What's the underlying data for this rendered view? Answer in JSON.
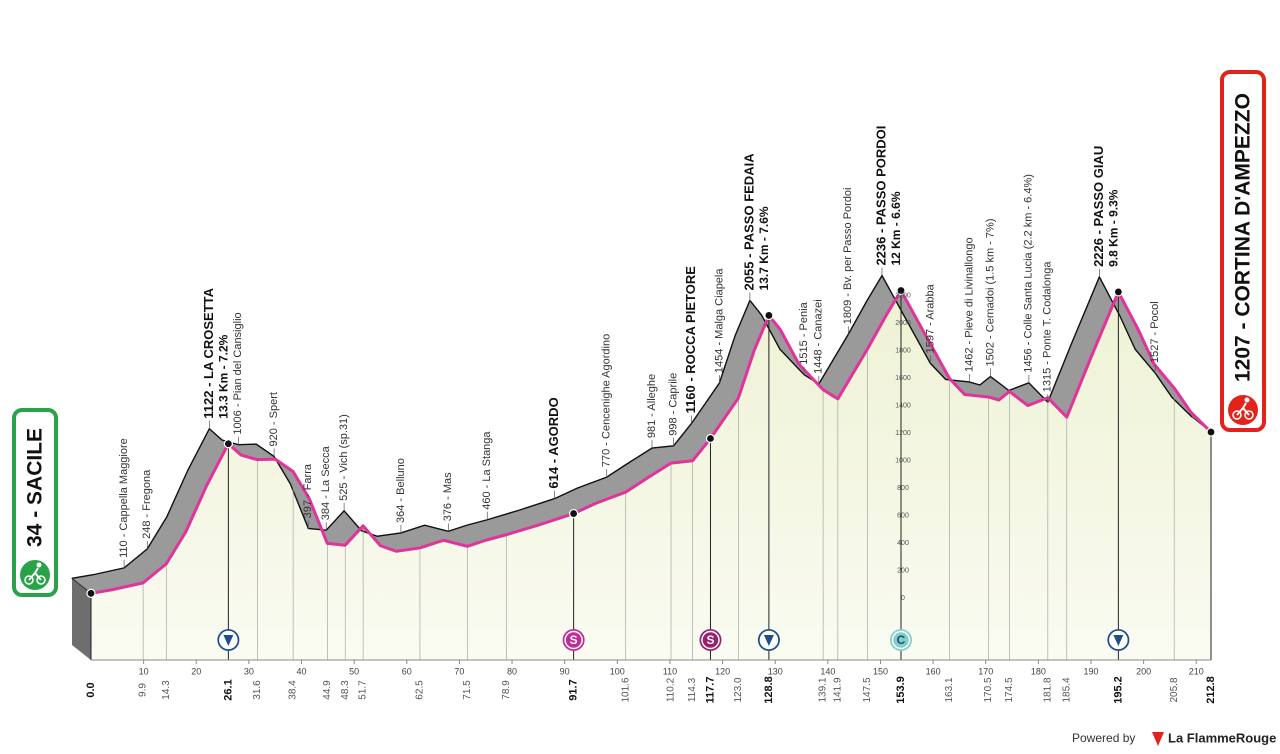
{
  "chart_data": {
    "type": "profile",
    "line_color": "#e0339c",
    "side_color": "#9a9a9a",
    "fill_color": "#eef2d3",
    "x": [
      0,
      4,
      9.9,
      14.3,
      18,
      22,
      26.1,
      28.5,
      31.6,
      35,
      38.4,
      41.5,
      44.9,
      48.3,
      51.7,
      55,
      58,
      62.5,
      67,
      71.5,
      75,
      78.9,
      85,
      91.7,
      96,
      101.6,
      106,
      110.2,
      114.3,
      117.7,
      123.0,
      126,
      128.8,
      131,
      134.5,
      139.1,
      141.9,
      147.5,
      151,
      153.9,
      158,
      163.1,
      166,
      170.5,
      172.5,
      174.5,
      178,
      181.8,
      185.4,
      190,
      195.2,
      199,
      202,
      205.8,
      209,
      212.8
    ],
    "values": [
      34,
      60,
      110,
      248,
      480,
      820,
      1122,
      1040,
      1006,
      1010,
      920,
      720,
      397,
      384,
      525,
      380,
      340,
      364,
      420,
      376,
      420,
      460,
      530,
      614,
      690,
      770,
      880,
      981,
      998,
      1160,
      1454,
      1800,
      2055,
      1950,
      1700,
      1515,
      1448,
      1809,
      2050,
      2236,
      1950,
      1597,
      1480,
      1462,
      1440,
      1502,
      1400,
      1456,
      1315,
      1750,
      2226,
      1950,
      1700,
      1527,
      1350,
      1207
    ],
    "xlim": [
      0,
      212.8
    ],
    "ylim": [
      0,
      2200
    ],
    "xticks": [
      10,
      20,
      30,
      40,
      50,
      60,
      70,
      80,
      90,
      100,
      110,
      120,
      130,
      140,
      150,
      160,
      170,
      180,
      190,
      200,
      210
    ],
    "yticks": [
      0,
      200,
      400,
      600,
      800,
      1000,
      1200,
      1400,
      1600,
      1800,
      2000,
      2200
    ],
    "km_points": [
      {
        "value": 0,
        "label": "0.0",
        "bold": true
      },
      9.9,
      14.3,
      {
        "value": 26.1,
        "bold": true
      },
      31.6,
      38.4,
      44.9,
      48.3,
      51.7,
      62.5,
      71.5,
      78.9,
      {
        "value": 91.7,
        "bold": true
      },
      101.6,
      110.2,
      114.3,
      {
        "value": 117.7,
        "bold": true
      },
      {
        "value": 123,
        "label": "123.0"
      },
      {
        "value": 128.8,
        "bold": true
      },
      139.1,
      141.9,
      147.5,
      {
        "value": 153.9,
        "bold": true
      },
      163.1,
      170.5,
      174.5,
      181.8,
      185.4,
      {
        "value": 195.2,
        "bold": true
      },
      205.8,
      {
        "value": 212.8,
        "bold": true
      }
    ],
    "waypoints": [
      {
        "x": 9.9,
        "label": "110 - Cappella Maggiore"
      },
      {
        "x": 14.3,
        "label": "248 - Fregona"
      },
      {
        "x": 26.1,
        "label": "1122 - LA CROSETTA",
        "sub": "13.3 Km - 7.2%",
        "bold": true
      },
      {
        "x": 31.6,
        "label": "1006 - Pian del Cansiglio"
      },
      {
        "x": 38.4,
        "label": "920 - Spert"
      },
      {
        "x": 44.9,
        "label": "397 - Farra"
      },
      {
        "x": 48.3,
        "label": "384 - La Secca"
      },
      {
        "x": 51.7,
        "label": "525 - Vich (sp.31)"
      },
      {
        "x": 62.5,
        "label": "364 - Belluno"
      },
      {
        "x": 71.5,
        "label": "376 - Mas"
      },
      {
        "x": 78.9,
        "label": "460 - La Stanga"
      },
      {
        "x": 91.7,
        "label": "614 - AGORDO",
        "bold": true
      },
      {
        "x": 101.6,
        "label": "770 - Cencenighe Agordino"
      },
      {
        "x": 110.2,
        "label": "981 - Alleghe"
      },
      {
        "x": 114.3,
        "label": "998 - Caprile"
      },
      {
        "x": 117.7,
        "label": "1160 - ROCCA PIETORE",
        "bold": true
      },
      {
        "x": 123.0,
        "label": "1454 - Malga Ciapela"
      },
      {
        "x": 128.8,
        "label": "2055 - PASSO FEDAIA",
        "sub": "13.7 Km - 7.6%",
        "bold": true
      },
      {
        "x": 139.1,
        "label": "1515 - Penia"
      },
      {
        "x": 141.9,
        "label": "1448 - Canazei"
      },
      {
        "x": 147.5,
        "label": "1809 - Bv. per Passo Pordoi"
      },
      {
        "x": 153.9,
        "label": "2236 - PASSO PORDOI",
        "sub": "12 Km - 6.6%",
        "bold": true
      },
      {
        "x": 163.1,
        "label": "1597 - Arabba"
      },
      {
        "x": 170.5,
        "label": "1462 - Pieve di Livinallongo"
      },
      {
        "x": 174.5,
        "label": "1502 - Cernadoi (1.5 km - 7%)"
      },
      {
        "x": 181.8,
        "label": "1456 - Colle Santa Lucia (2.2 km - 6.4%)"
      },
      {
        "x": 185.4,
        "label": "1315 - Ponte T. Codalonga"
      },
      {
        "x": 195.2,
        "label": "2226 - PASSO GIAU",
        "sub": "9.8 Km - 9.3%",
        "bold": true
      },
      {
        "x": 205.8,
        "label": "1527 - Pocol"
      }
    ],
    "icons": [
      {
        "x": 26.1,
        "symbol": "gpm",
        "color": "#1f4e8c"
      },
      {
        "x": 91.7,
        "label": "S",
        "color": "#c42a93"
      },
      {
        "x": 117.7,
        "label": "S",
        "color": "#9c1f6f"
      },
      {
        "x": 128.8,
        "symbol": "gpm",
        "color": "#1f4e8c"
      },
      {
        "x": 153.9,
        "label": "C",
        "color": "#7fcfca"
      },
      {
        "x": 195.2,
        "symbol": "gpm",
        "color": "#1f4e8c"
      }
    ],
    "start": {
      "label": "34 - SACILE",
      "color": "#2aa24a"
    },
    "finish": {
      "label": "1207 - CORTINA D'AMPEZZO",
      "color": "#e2231a"
    }
  },
  "footer": {
    "powered_by": "Powered by",
    "brand": "La FlammeRouge"
  }
}
